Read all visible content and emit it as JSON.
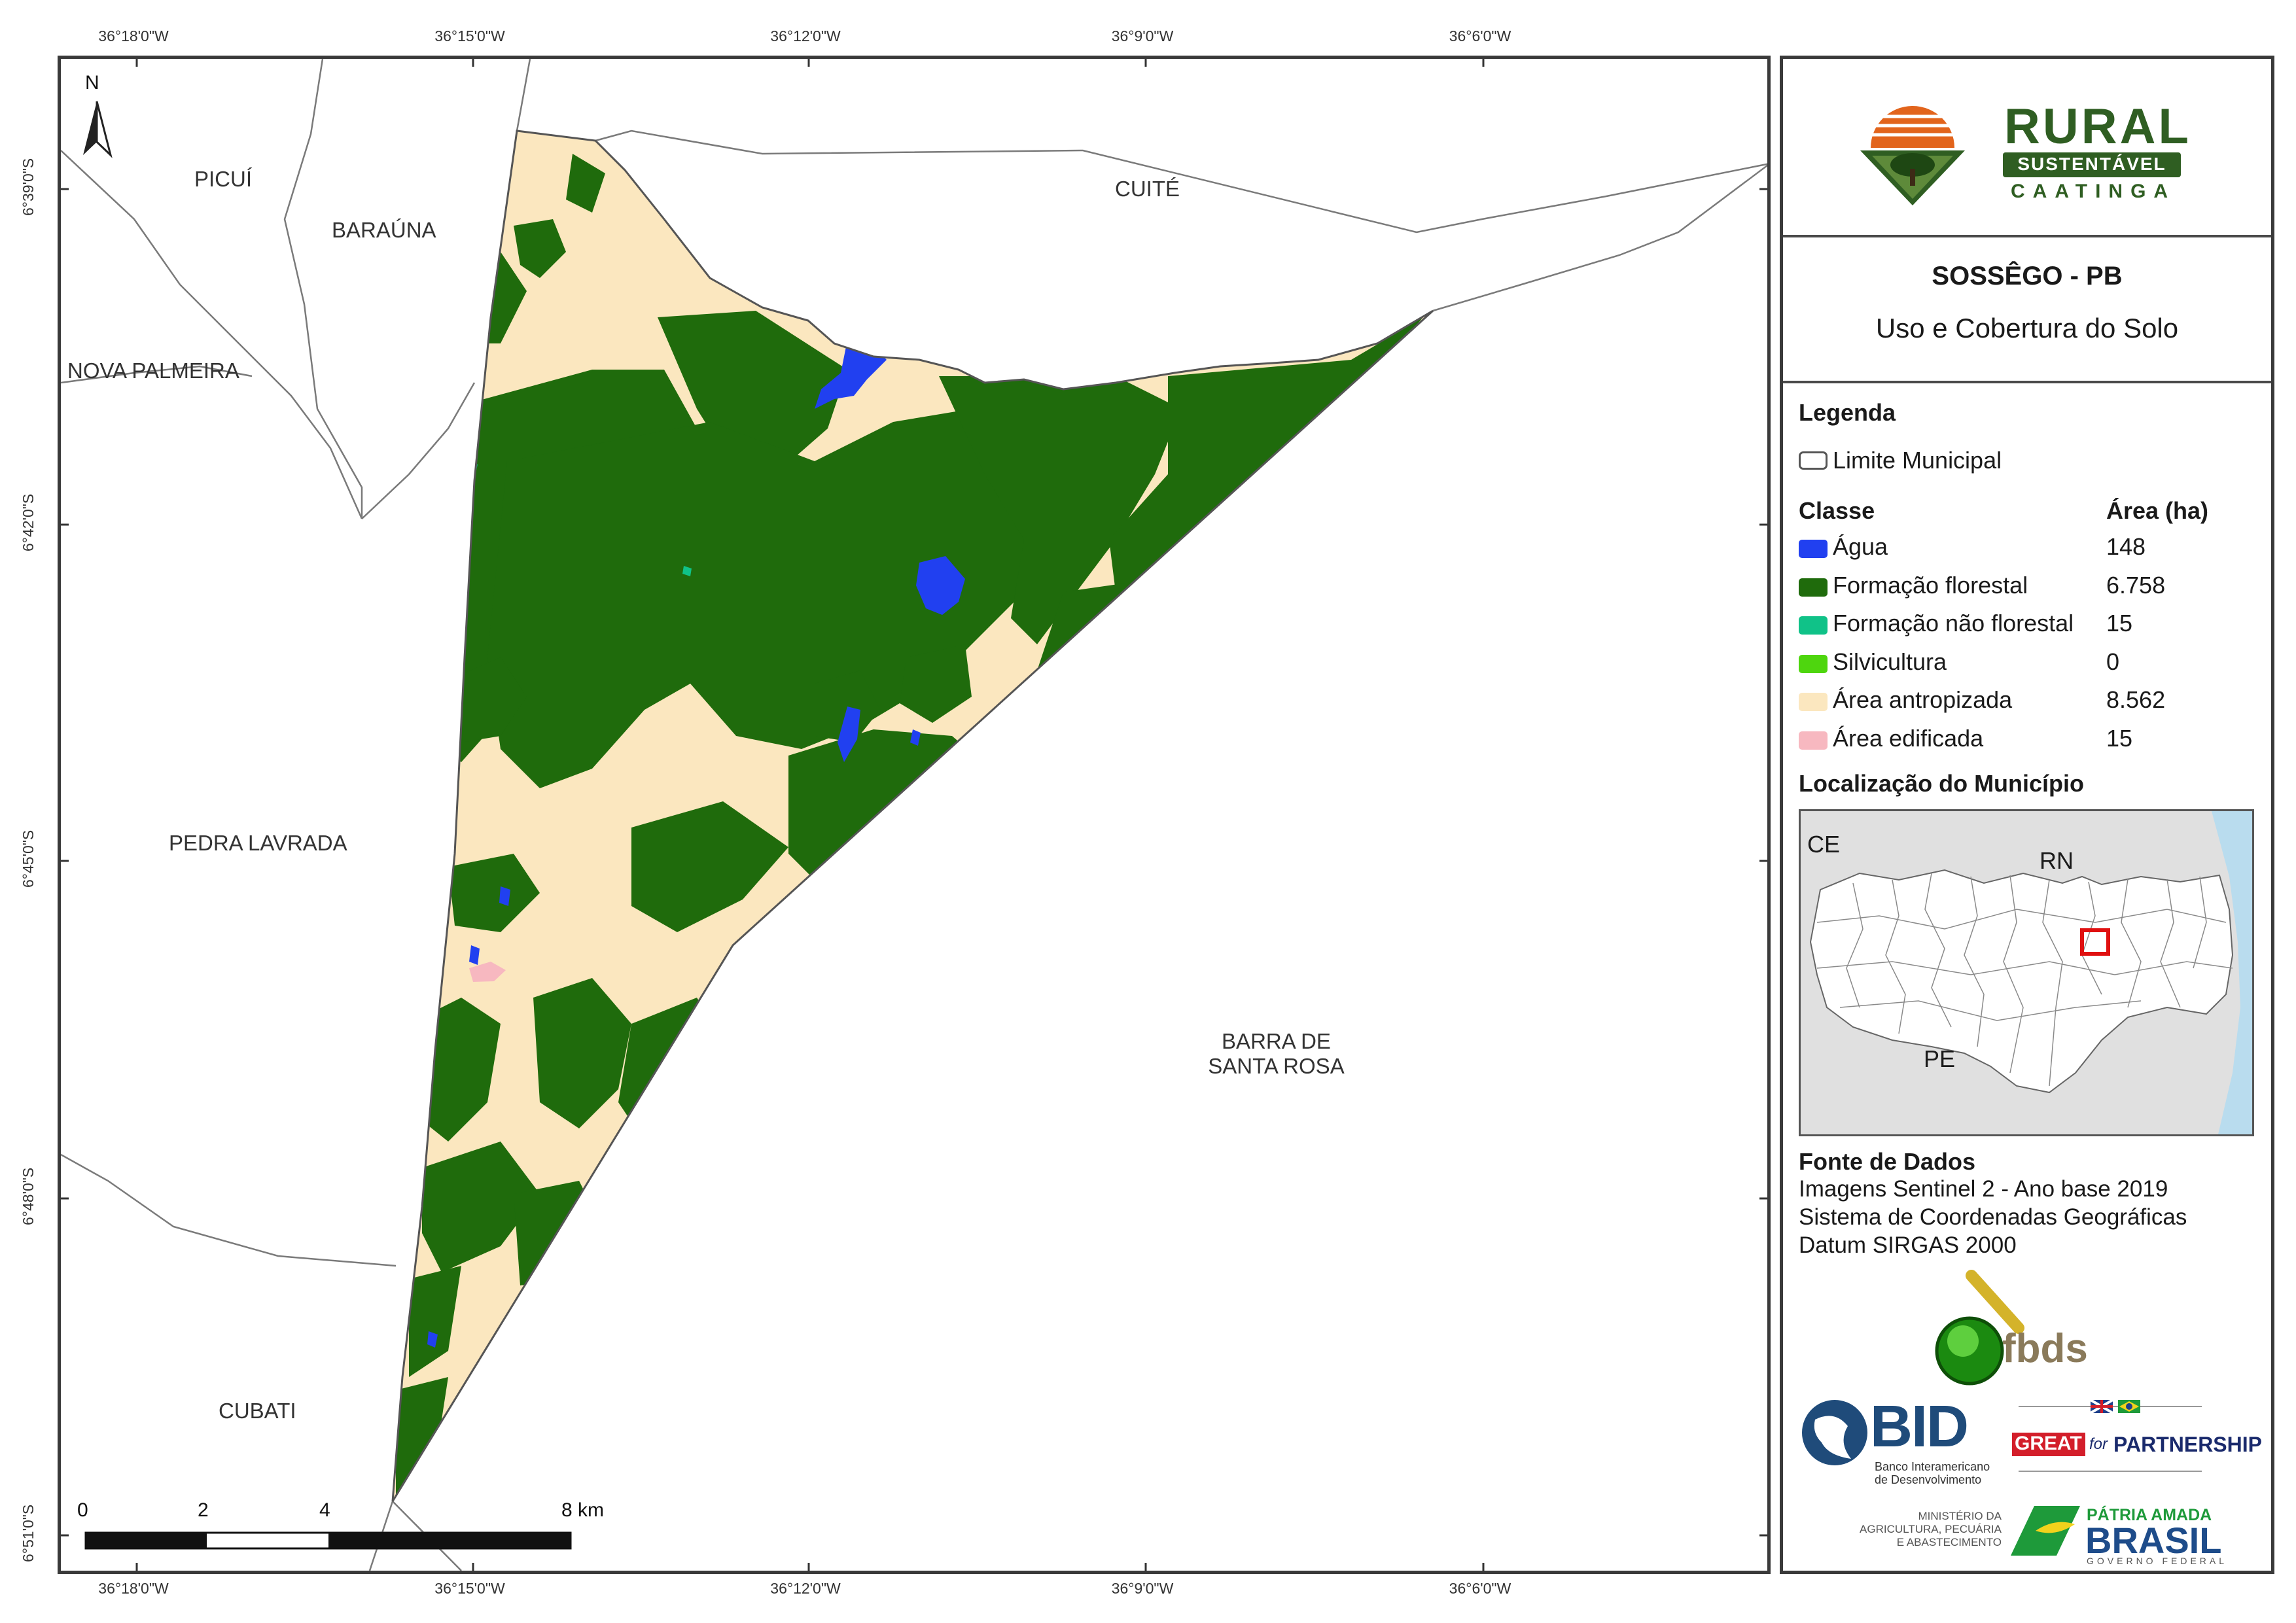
{
  "map": {
    "coords_top": [
      "36°18'0\"W",
      "36°15'0\"W",
      "36°12'0\"W",
      "36°9'0\"W",
      "36°6'0\"W"
    ],
    "coords_bottom": [
      "36°18'0\"W",
      "36°15'0\"W",
      "36°12'0\"W",
      "36°9'0\"W",
      "36°6'0\"W"
    ],
    "coords_left": [
      "6°39'0\"S",
      "6°42'0\"S",
      "6°45'0\"S",
      "6°48'0\"S",
      "6°51'0\"S"
    ],
    "north_label": "N",
    "places": {
      "picui": "PICUÍ",
      "barauna": "BARAÚNA",
      "cuite": "CUITÉ",
      "nova_palmeira": "NOVA PALMEIRA",
      "pedra_lavrada": "PEDRA LAVRADA",
      "barra_line1": "BARRA DE",
      "barra_line2": "SANTA ROSA",
      "cubati": "CUBATI"
    },
    "scale": {
      "labels": [
        "0",
        "2",
        "4",
        "8 km"
      ]
    },
    "colors": {
      "forest": "#1f6b0c",
      "anthropic": "#fbe7bf",
      "water": "#2140f0",
      "nonforest": "#10c288",
      "built": "#f7b8c0"
    }
  },
  "panel": {
    "logo": {
      "title": "RURAL",
      "band": "SUSTENTÁVEL",
      "sub": "CAATINGA"
    },
    "title": "SOSSÊGO - PB",
    "subtitle": "Uso e Cobertura do Solo",
    "legend_heading": "Legenda",
    "boundary_label": "Limite Municipal",
    "class_header": "Classe",
    "area_header": "Área (ha)",
    "classes": [
      {
        "label": "Água",
        "area": "148",
        "color": "#2140f0"
      },
      {
        "label": "Formação florestal",
        "area": "6.758",
        "color": "#1f6b0c"
      },
      {
        "label": "Formação não florestal",
        "area": "15",
        "color": "#10c288"
      },
      {
        "label": "Silvicultura",
        "area": "0",
        "color": "#4ed60e"
      },
      {
        "label": "Área antropizada",
        "area": "8.562",
        "color": "#fbe7bf"
      },
      {
        "label": "Área edificada",
        "area": "15",
        "color": "#f7b8c0"
      }
    ],
    "location_heading": "Localização do Município",
    "inset": {
      "ce": "CE",
      "rn": "RN",
      "pe": "PE"
    },
    "source_heading": "Fonte de Dados",
    "source_lines": [
      "Imagens Sentinel 2 - Ano base 2019",
      "Sistema de Coordenadas Geográficas",
      "Datum SIRGAS 2000"
    ],
    "logos": {
      "fbds": "fbds",
      "bid": "BID",
      "bid_sub1": "Banco Interamericano",
      "bid_sub2": "de Desenvolvimento",
      "great": "GREAT",
      "great_for": "for",
      "partnership": "PARTNERSHIP",
      "ministry1": "MINISTÉRIO DA",
      "ministry2": "AGRICULTURA, PECUÁRIA",
      "ministry3": "E ABASTECIMENTO",
      "patria": "PÁTRIA AMADA",
      "brasil": "BRASIL",
      "gov": "GOVERNO FEDERAL"
    }
  }
}
